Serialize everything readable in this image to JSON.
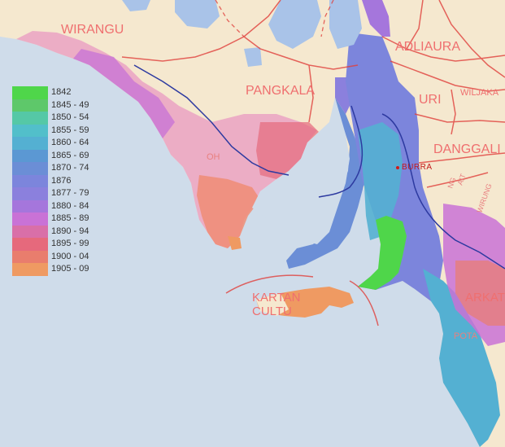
{
  "map": {
    "region_labels": [
      {
        "id": "wirangu",
        "text": "WIRANGU"
      },
      {
        "id": "pangkala",
        "text": "PANGKALA"
      },
      {
        "id": "adliaura",
        "text": "ADLIAURA"
      },
      {
        "id": "uri",
        "text": "URI"
      },
      {
        "id": "wiljaka",
        "text": "WILJAKA"
      },
      {
        "id": "danggali",
        "text": "DANGGALI"
      },
      {
        "id": "kartan",
        "text": "KARTAN"
      },
      {
        "id": "culture",
        "text": "CULTU"
      },
      {
        "id": "arkat",
        "text": "ARKAT"
      },
      {
        "id": "pota",
        "text": "POTA"
      },
      {
        "id": "oh",
        "text": "OH"
      },
      {
        "id": "wirung",
        "text": "WIRUNG"
      },
      {
        "id": "ng",
        "text": "NG"
      },
      {
        "id": "ait",
        "text": "AIT"
      }
    ],
    "places": [
      {
        "id": "burra",
        "text": "BURRA"
      }
    ]
  },
  "legend": {
    "items": [
      {
        "label": "1842",
        "color": "#4fd64a"
      },
      {
        "label": "1845 - 49",
        "color": "#5ec86a"
      },
      {
        "label": "1850 - 54",
        "color": "#55c8a6"
      },
      {
        "label": "1855 - 59",
        "color": "#52bfca"
      },
      {
        "label": "1860 - 64",
        "color": "#54b0d2"
      },
      {
        "label": "1865 - 69",
        "color": "#5b98d3"
      },
      {
        "label": "1870 - 74",
        "color": "#6b8ed6"
      },
      {
        "label": "1876",
        "color": "#7c85dc"
      },
      {
        "label": "1877 - 79",
        "color": "#8b80dd"
      },
      {
        "label": "1880 - 84",
        "color": "#a576dc"
      },
      {
        "label": "1885 - 89",
        "color": "#c972d6"
      },
      {
        "label": "1890 - 94",
        "color": "#d96fa8"
      },
      {
        "label": "1895 - 99",
        "color": "#e6697c"
      },
      {
        "label": "1900 - 04",
        "color": "#e97d6d"
      },
      {
        "label": "1905 - 09",
        "color": "#ef9a62"
      }
    ]
  },
  "colors": {
    "sea": "#cfdcea",
    "land": "#f5e8cf",
    "lakes": "#a9c3e8",
    "boundaries": "#e0403c",
    "rail": "#2d3aa0"
  }
}
